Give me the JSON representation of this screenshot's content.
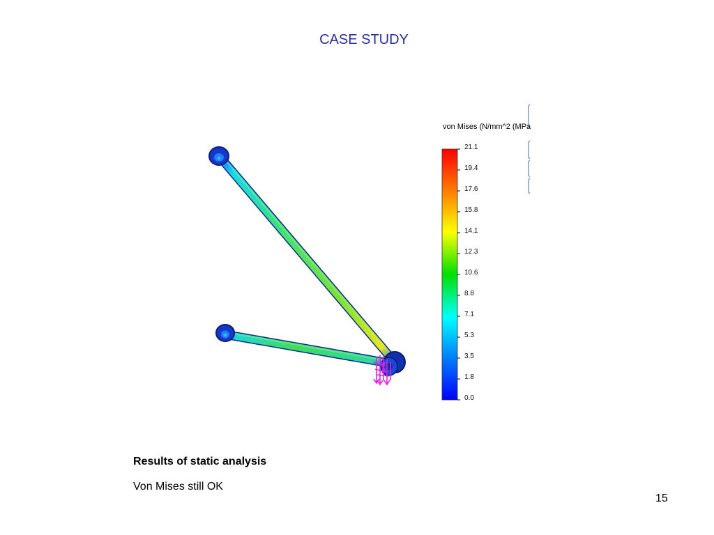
{
  "slide": {
    "title": "CASE STUDY",
    "caption_heading": "Results of static analysis",
    "caption_body": "Von Mises still OK",
    "page_number": "15"
  },
  "figure": {
    "legend_title": "von Mises (N/mm^2 (MPa",
    "legend_ticks": [
      "21.1",
      "19.4",
      "17.6",
      "15.8",
      "14.1",
      "12.3",
      "10.6",
      "8.8",
      "7.1",
      "5.3",
      "3.5",
      "1.8",
      "0.0"
    ],
    "colormap": [
      "#ff0000",
      "#ff8000",
      "#ffff00",
      "#00e000",
      "#00ffff",
      "#0080ff",
      "#0000ff"
    ]
  }
}
